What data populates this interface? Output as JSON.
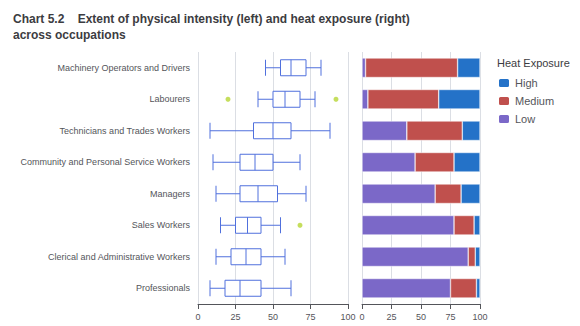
{
  "chart_data": [
    {
      "type": "boxplot",
      "title": "Chart 5.2    Extent of physical intensity (left) and heat exposure (right)\nacross occupations",
      "orientation": "horizontal",
      "categories": [
        "Machinery Operators and Drivers",
        "Labourers",
        "Technicians and Trades Workers",
        "Community and Personal Service Workers",
        "Managers",
        "Sales Workers",
        "Clerical and Administrative Workers",
        "Professionals"
      ],
      "values": [
        [
          45,
          55,
          62,
          72,
          82
        ],
        [
          40,
          50,
          58,
          68,
          78
        ],
        [
          8,
          37,
          50,
          62,
          88
        ],
        [
          10,
          28,
          38,
          50,
          68
        ],
        [
          12,
          28,
          40,
          53,
          72
        ],
        [
          15,
          25,
          33,
          42,
          55
        ],
        [
          12,
          22,
          32,
          42,
          58
        ],
        [
          8,
          18,
          28,
          42,
          62
        ]
      ],
      "fliers": [
        [],
        [
          20,
          92
        ],
        [],
        [],
        [],
        [
          68
        ],
        [],
        []
      ],
      "xlim": [
        0,
        100
      ],
      "xticks": [
        0,
        25,
        50,
        75,
        100
      ],
      "grid": true
    },
    {
      "type": "bar",
      "orientation": "horizontal",
      "stacked": true,
      "categories": [
        "Machinery Operators and Drivers",
        "Labourers",
        "Technicians and Trades Workers",
        "Community and Personal Service Workers",
        "Managers",
        "Sales Workers",
        "Clerical and Administrative Workers",
        "Professionals"
      ],
      "series": [
        {
          "name": "Low",
          "color": "#7b68c8",
          "values": [
            3,
            5,
            38,
            45,
            62,
            78,
            90,
            75
          ]
        },
        {
          "name": "Medium",
          "color": "#c0504d",
          "values": [
            78,
            60,
            47,
            33,
            22,
            17,
            6,
            22
          ]
        },
        {
          "name": "High",
          "color": "#2472c8",
          "values": [
            19,
            35,
            15,
            22,
            16,
            5,
            4,
            3
          ]
        }
      ],
      "xlim": [
        0,
        100
      ],
      "xticks": [
        0,
        25,
        50,
        75,
        100
      ],
      "grid": true,
      "legend": "right",
      "legend_title": "Heat Exposure",
      "tick_labels": "x"
    }
  ]
}
